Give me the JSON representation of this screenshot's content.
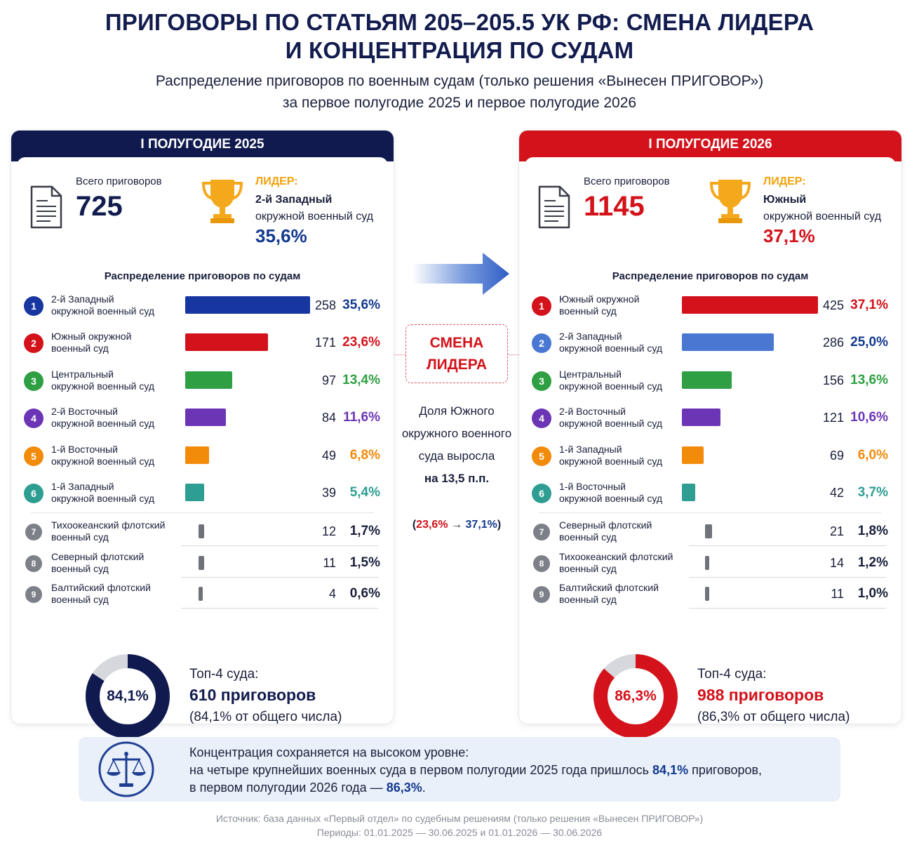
{
  "header": {
    "title_line1": "ПРИГОВОРЫ ПО СТАТЬЯМ 205–205.5 УК РФ: СМЕНА ЛИДЕРА",
    "title_line2": "И КОНЦЕНТРАЦИЯ ПО СУДАМ",
    "subtitle_line1": "Распределение приговоров по военным судам (только решения «Вынесен ПРИГОВОР»)",
    "subtitle_line2": "за первое полугодие 2025 и первое полугодие 2026"
  },
  "colors": {
    "navy": "#101a4e",
    "red": "#d3121b",
    "blue_dark": "#1736a0",
    "blue_light": "#4a77d1",
    "green": "#2ea043",
    "purple": "#6b35b5",
    "orange": "#f28a0a",
    "teal": "#2e9e92",
    "gray": "#6f7278"
  },
  "chart_data": [
    {
      "type": "bar",
      "panel_title": "I ПОЛУГОДИЕ 2025",
      "total_label": "Всего приговоров",
      "total": "725",
      "leader_label": "ЛИДЕР:",
      "leader_name": "2-й Западный",
      "leader_sub": "окружной военный суд",
      "leader_pct": "35,6%",
      "dist_title": "Распределение приговоров по судам",
      "max_value": 258,
      "categories": [
        {
          "rank": "1",
          "name": "2-й Западный\nокружной военный суд",
          "value": 258,
          "count": "258",
          "pct": "35,6%",
          "color": "#1736a0",
          "pct_color": "#133a8f",
          "small": false
        },
        {
          "rank": "2",
          "name": "Южный окружной\nвоенный суд",
          "value": 171,
          "count": "171",
          "pct": "23,6%",
          "color": "#d3121b",
          "pct_color": "#d3121b",
          "small": false
        },
        {
          "rank": "3",
          "name": "Центральный\nокружной военный суд",
          "value": 97,
          "count": "97",
          "pct": "13,4%",
          "color": "#2ea043",
          "pct_color": "#2ea043",
          "small": false
        },
        {
          "rank": "4",
          "name": "2-й Восточный\nокружной военный суд",
          "value": 84,
          "count": "84",
          "pct": "11,6%",
          "color": "#6b35b5",
          "pct_color": "#6b35b5",
          "small": false
        },
        {
          "rank": "5",
          "name": "1-й Восточный\nокружной военный суд",
          "value": 49,
          "count": "49",
          "pct": "6,8%",
          "color": "#f28a0a",
          "pct_color": "#f28a0a",
          "small": false
        },
        {
          "rank": "6",
          "name": "1-й Западный\nокружной военный суд",
          "value": 39,
          "count": "39",
          "pct": "5,4%",
          "color": "#2e9e92",
          "pct_color": "#2e9e92",
          "small": false
        },
        {
          "rank": "7",
          "name": "Тихоокеанский флотский\nвоенный суд",
          "value": 12,
          "count": "12",
          "pct": "1,7%",
          "color": "#6f7278",
          "pct_color": "#1a1f3a",
          "small": true
        },
        {
          "rank": "8",
          "name": "Северный флотский\nвоенный суд",
          "value": 11,
          "count": "11",
          "pct": "1,5%",
          "color": "#6f7278",
          "pct_color": "#1a1f3a",
          "small": true
        },
        {
          "rank": "9",
          "name": "Балтийский флотский\nвоенный суд",
          "value": 4,
          "count": "4",
          "pct": "0,6%",
          "color": "#6f7278",
          "pct_color": "#1a1f3a",
          "small": true
        }
      ],
      "donut_value": 84.1,
      "donut_label": "84,1%",
      "donut_color": "#101a4e",
      "top4_title": "Топ-4 суда:",
      "top4_count": "610 приговоров",
      "top4_share": "(84,1% от общего числа)"
    },
    {
      "type": "bar",
      "panel_title": "I ПОЛУГОДИЕ 2026",
      "total_label": "Всего приговоров",
      "total": "1145",
      "leader_label": "ЛИДЕР:",
      "leader_name": "Южный",
      "leader_sub": "окружной военный суд",
      "leader_pct": "37,1%",
      "dist_title": "Распределение приговоров по судам",
      "max_value": 425,
      "categories": [
        {
          "rank": "1",
          "name": "Южный окружной\nвоенный суд",
          "value": 425,
          "count": "425",
          "pct": "37,1%",
          "color": "#d3121b",
          "pct_color": "#d3121b",
          "small": false
        },
        {
          "rank": "2",
          "name": "2-й Западный\nокружной военный суд",
          "value": 286,
          "count": "286",
          "pct": "25,0%",
          "color": "#4a77d1",
          "pct_color": "#133a8f",
          "small": false
        },
        {
          "rank": "3",
          "name": "Центральный\nокружной военный суд",
          "value": 156,
          "count": "156",
          "pct": "13,6%",
          "color": "#2ea043",
          "pct_color": "#2ea043",
          "small": false
        },
        {
          "rank": "4",
          "name": "2-й Восточный\nокружной военный суд",
          "value": 121,
          "count": "121",
          "pct": "10,6%",
          "color": "#6b35b5",
          "pct_color": "#6b35b5",
          "small": false
        },
        {
          "rank": "5",
          "name": "1-й Западный\nокружной военный суд",
          "value": 69,
          "count": "69",
          "pct": "6,0%",
          "color": "#f28a0a",
          "pct_color": "#f28a0a",
          "small": false
        },
        {
          "rank": "6",
          "name": "1-й Восточный\nокружной военный суд",
          "value": 42,
          "count": "42",
          "pct": "3,7%",
          "color": "#2e9e92",
          "pct_color": "#2e9e92",
          "small": false
        },
        {
          "rank": "7",
          "name": "Северный флотский\nвоенный суд",
          "value": 21,
          "count": "21",
          "pct": "1,8%",
          "color": "#6f7278",
          "pct_color": "#1a1f3a",
          "small": true
        },
        {
          "rank": "8",
          "name": "Тихоокеанский флотский\nвоенный суд",
          "value": 14,
          "count": "14",
          "pct": "1,2%",
          "color": "#6f7278",
          "pct_color": "#1a1f3a",
          "small": true
        },
        {
          "rank": "9",
          "name": "Балтийский флотский\nвоенный суд",
          "value": 11,
          "count": "11",
          "pct": "1,0%",
          "color": "#6f7278",
          "pct_color": "#1a1f3a",
          "small": true
        }
      ],
      "donut_value": 86.3,
      "donut_label": "86,3%",
      "donut_color": "#d3121b",
      "top4_title": "Топ-4 суда:",
      "top4_count": "988 приговоров",
      "top4_share": "(86,3% от общего числа)"
    }
  ],
  "middle": {
    "change_line1": "СМЕНА",
    "change_line2": "ЛИДЕРА",
    "share_text": "Доля Южного окружного военного суда выросла",
    "delta": "на 13,5 п.п.",
    "from": "23,6%",
    "arrow": "→",
    "to": "37,1%"
  },
  "note": {
    "line1": "Концентрация сохраняется на высоком уровне:",
    "line2_a": "на четыре крупнейших военных суда в первом полугодии 2025 года пришлось ",
    "line2_b": "84,1%",
    "line2_c": " приговоров,",
    "line3_a": "в первом полугодии 2026 года — ",
    "line3_b": "86,3%",
    "line3_c": "."
  },
  "source": {
    "line1": "Источник: база данных «Первый отдел» по судебным решениям (только решения «Вынесен ПРИГОВОР»)",
    "line2": "Периоды: 01.01.2025 — 30.06.2025 и 01.01.2026 — 30.06.2026"
  }
}
